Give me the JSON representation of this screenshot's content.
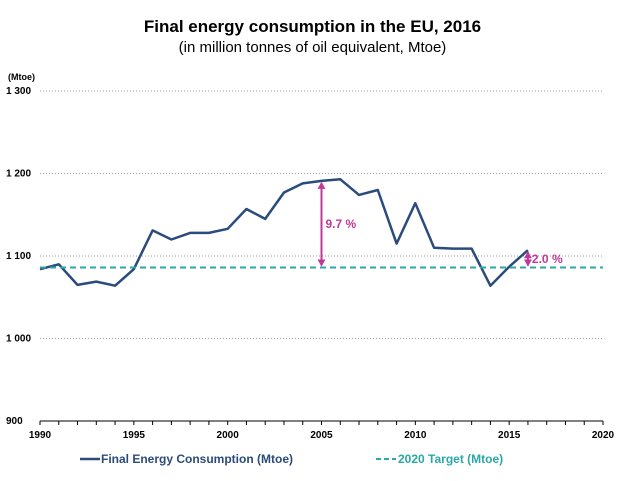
{
  "chart_data": {
    "type": "line",
    "title": "Final energy consumption in the EU, 2016",
    "subtitle": "(in million tonnes of oil equivalent, Mtoe)",
    "ylabel": "(Mtoe)",
    "xlim": [
      1990,
      2020
    ],
    "ylim": [
      900,
      1300
    ],
    "x_ticks": [
      1990,
      1995,
      2000,
      2005,
      2010,
      2015,
      2020
    ],
    "y_ticks": [
      900,
      1000,
      1100,
      1200,
      1300
    ],
    "y_tick_labels": [
      "900",
      "1 000",
      "1 100",
      "1 200",
      "1 300"
    ],
    "grid": "horizontal dotted",
    "legend_position": "bottom",
    "series": [
      {
        "name": "Final Energy Consumption (Mtoe)",
        "color": "#2a4b7c",
        "style": "solid",
        "x": [
          1990,
          1991,
          1992,
          1993,
          1994,
          1995,
          1996,
          1997,
          1998,
          1999,
          2000,
          2001,
          2002,
          2003,
          2004,
          2005,
          2006,
          2007,
          2008,
          2009,
          2010,
          2011,
          2012,
          2013,
          2014,
          2015,
          2016
        ],
        "values": [
          1084,
          1090,
          1065,
          1069,
          1064,
          1084,
          1131,
          1120,
          1128,
          1128,
          1133,
          1157,
          1145,
          1177,
          1188,
          1191,
          1193,
          1174,
          1180,
          1115,
          1164,
          1110,
          1109,
          1109,
          1064,
          1087,
          1107
        ]
      },
      {
        "name": "2020 Target (Mtoe)",
        "color": "#2aa7a7",
        "style": "dashed",
        "x": [
          1990,
          2020
        ],
        "values": [
          1086,
          1086
        ]
      }
    ],
    "annotations": [
      {
        "label": "9.7 %",
        "x": 2005,
        "from": 1191,
        "to": 1086,
        "color": "#c0399a"
      },
      {
        "label": "2.0 %",
        "x": 2016,
        "from": 1107,
        "to": 1086,
        "color": "#c0399a"
      }
    ]
  }
}
